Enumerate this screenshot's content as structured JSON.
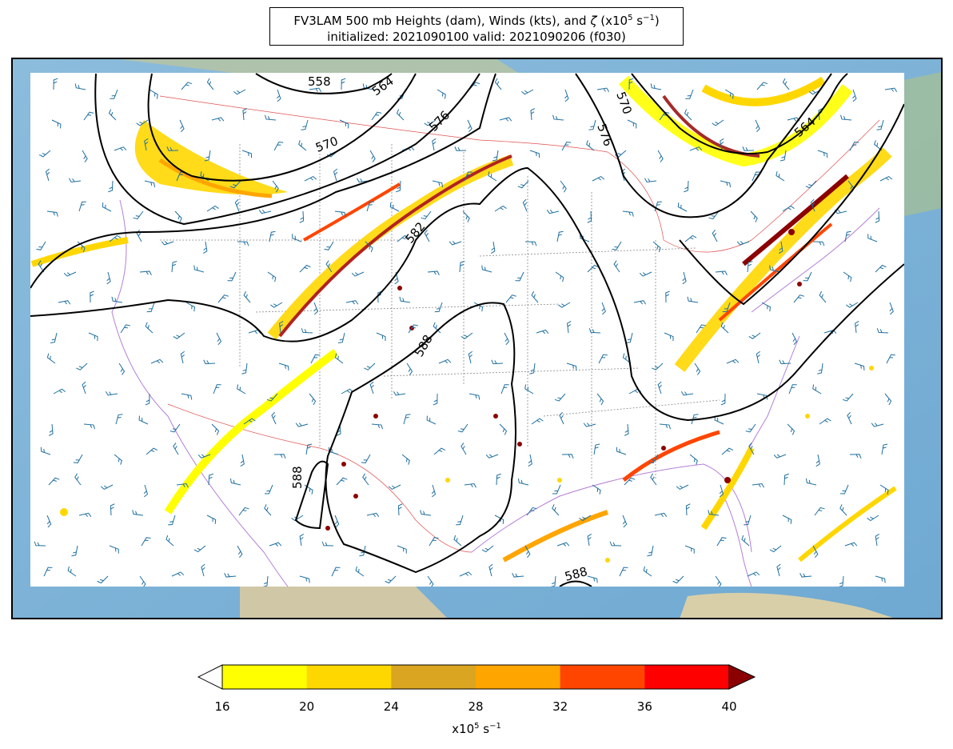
{
  "title": {
    "line1_pre": "FV3LAM 500 mb Heights (dam), Winds (kts), and ",
    "line1_zeta": "ζ",
    "line1_units": " (x10",
    "line1_sup1": "5",
    "line1_mid": " s",
    "line1_sup2": "−1",
    "line1_end": ")",
    "line2": "initialized: 2021090100 valid: 2021090206 (f030)"
  },
  "contours": [
    {
      "label": "558"
    },
    {
      "label": "564"
    },
    {
      "label": "570"
    },
    {
      "label": "576"
    },
    {
      "label": "582"
    },
    {
      "label": "588"
    }
  ],
  "colorbar": {
    "ticks": [
      "16",
      "20",
      "24",
      "28",
      "32",
      "36",
      "40"
    ],
    "colors": [
      "#ffff00",
      "#ffd700",
      "#daa520",
      "#ffa500",
      "#ff4500",
      "#ff0000"
    ],
    "over_color": "#8b0000",
    "under_color": "#ffffff",
    "label_pre": "x10",
    "label_sup1": "5",
    "label_mid": " s",
    "label_sup2": "−1"
  },
  "colors": {
    "ocean": "#7eb4d8",
    "land": "#cfc7a6",
    "plot_bg": "#ffffff",
    "contour": "#000000",
    "barb": "#1f6fa0",
    "state_borders": "#888888",
    "coastline": "#b480d6"
  }
}
